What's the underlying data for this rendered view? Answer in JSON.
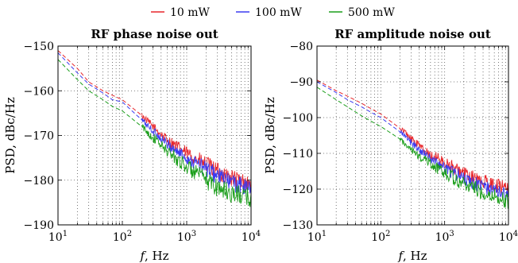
{
  "legend": {
    "entries": [
      {
        "label": "10 mW",
        "color": "#e8262b"
      },
      {
        "label": "100 mW",
        "color": "#3b3bf0"
      },
      {
        "label": "500 mW",
        "color": "#1a9e1a"
      }
    ]
  },
  "chart_data": [
    {
      "type": "line",
      "title": "RF phase noise out",
      "xlabel_italic": "f",
      "xlabel_rest": ", Hz",
      "ylabel": "PSD, dBc/Hz",
      "xscale": "log",
      "xlim": [
        10,
        10000
      ],
      "ylim": [
        -190,
        -150
      ],
      "xticks": [
        {
          "base": "10",
          "exp": "1",
          "value": 10
        },
        {
          "base": "10",
          "exp": "2",
          "value": 100
        },
        {
          "base": "10",
          "exp": "3",
          "value": 1000
        },
        {
          "base": "10",
          "exp": "4",
          "value": 10000
        }
      ],
      "yticks": [
        {
          "label": "−150",
          "value": -150
        },
        {
          "label": "−160",
          "value": -160
        },
        {
          "label": "−170",
          "value": -170
        },
        {
          "label": "−180",
          "value": -180
        },
        {
          "label": "−190",
          "value": -190
        }
      ],
      "grid": "dotted",
      "series": [
        {
          "name": "10 mW",
          "color": "#e8262b",
          "x": [
            10,
            20,
            30,
            50,
            70,
            100,
            200,
            300,
            500,
            1000,
            2000,
            3000,
            5000,
            10000
          ],
          "y": [
            -151,
            -155,
            -158,
            -160,
            -161,
            -162,
            -165.5,
            -168,
            -171,
            -174,
            -176.5,
            -178,
            -179.5,
            -181
          ],
          "noise_start": 200,
          "noise_amp": 2
        },
        {
          "name": "100 mW",
          "color": "#3b3bf0",
          "x": [
            10,
            20,
            30,
            50,
            70,
            100,
            200,
            300,
            500,
            1000,
            2000,
            3000,
            5000,
            10000
          ],
          "y": [
            -151.5,
            -156,
            -158.5,
            -160.5,
            -162,
            -162.5,
            -166.5,
            -169,
            -172,
            -175,
            -177.5,
            -179,
            -180.5,
            -182
          ],
          "noise_start": 200,
          "noise_amp": 2
        },
        {
          "name": "500 mW",
          "color": "#1a9e1a",
          "x": [
            10,
            20,
            30,
            50,
            70,
            100,
            200,
            300,
            500,
            1000,
            2000,
            3000,
            5000,
            10000
          ],
          "y": [
            -153,
            -157.5,
            -160,
            -162,
            -163.5,
            -164.5,
            -168,
            -170.5,
            -173.5,
            -177,
            -180,
            -181.5,
            -183,
            -184
          ],
          "noise_start": 200,
          "noise_amp": 2.2
        }
      ]
    },
    {
      "type": "line",
      "title": "RF amplitude noise out",
      "xlabel_italic": "f",
      "xlabel_rest": ", Hz",
      "ylabel": "PSD, dBc/Hz",
      "xscale": "log",
      "xlim": [
        10,
        10000
      ],
      "ylim": [
        -130,
        -80
      ],
      "xticks": [
        {
          "base": "10",
          "exp": "1",
          "value": 10
        },
        {
          "base": "10",
          "exp": "2",
          "value": 100
        },
        {
          "base": "10",
          "exp": "3",
          "value": 1000
        },
        {
          "base": "10",
          "exp": "4",
          "value": 10000
        }
      ],
      "yticks": [
        {
          "label": "−80",
          "value": -80
        },
        {
          "label": "−90",
          "value": -90
        },
        {
          "label": "−100",
          "value": -100
        },
        {
          "label": "−110",
          "value": -110
        },
        {
          "label": "−120",
          "value": -120
        },
        {
          "label": "−130",
          "value": -130
        }
      ],
      "grid": "dotted",
      "series": [
        {
          "name": "10 mW",
          "color": "#e8262b",
          "x": [
            10,
            20,
            30,
            50,
            70,
            100,
            200,
            300,
            500,
            1000,
            2000,
            3000,
            5000,
            10000
          ],
          "y": [
            -89.5,
            -92.5,
            -94,
            -96,
            -97.5,
            -99,
            -103,
            -106,
            -109.5,
            -112.5,
            -115.5,
            -117,
            -118.5,
            -120
          ],
          "noise_start": 200,
          "noise_amp": 2.2
        },
        {
          "name": "100 mW",
          "color": "#3b3bf0",
          "x": [
            10,
            20,
            30,
            50,
            70,
            100,
            200,
            300,
            500,
            1000,
            2000,
            3000,
            5000,
            10000
          ],
          "y": [
            -90,
            -93,
            -95,
            -97,
            -98.5,
            -100,
            -104,
            -107,
            -110.5,
            -114,
            -117,
            -118.5,
            -120,
            -121.5
          ],
          "noise_start": 200,
          "noise_amp": 2
        },
        {
          "name": "500 mW",
          "color": "#1a9e1a",
          "x": [
            10,
            20,
            30,
            50,
            70,
            100,
            200,
            300,
            500,
            1000,
            2000,
            3000,
            5000,
            10000
          ],
          "y": [
            -91.5,
            -95,
            -97,
            -99.5,
            -101,
            -102.5,
            -106,
            -109,
            -112,
            -115.5,
            -118.5,
            -120,
            -121.5,
            -123.5
          ],
          "noise_start": 200,
          "noise_amp": 2.2
        }
      ]
    }
  ]
}
